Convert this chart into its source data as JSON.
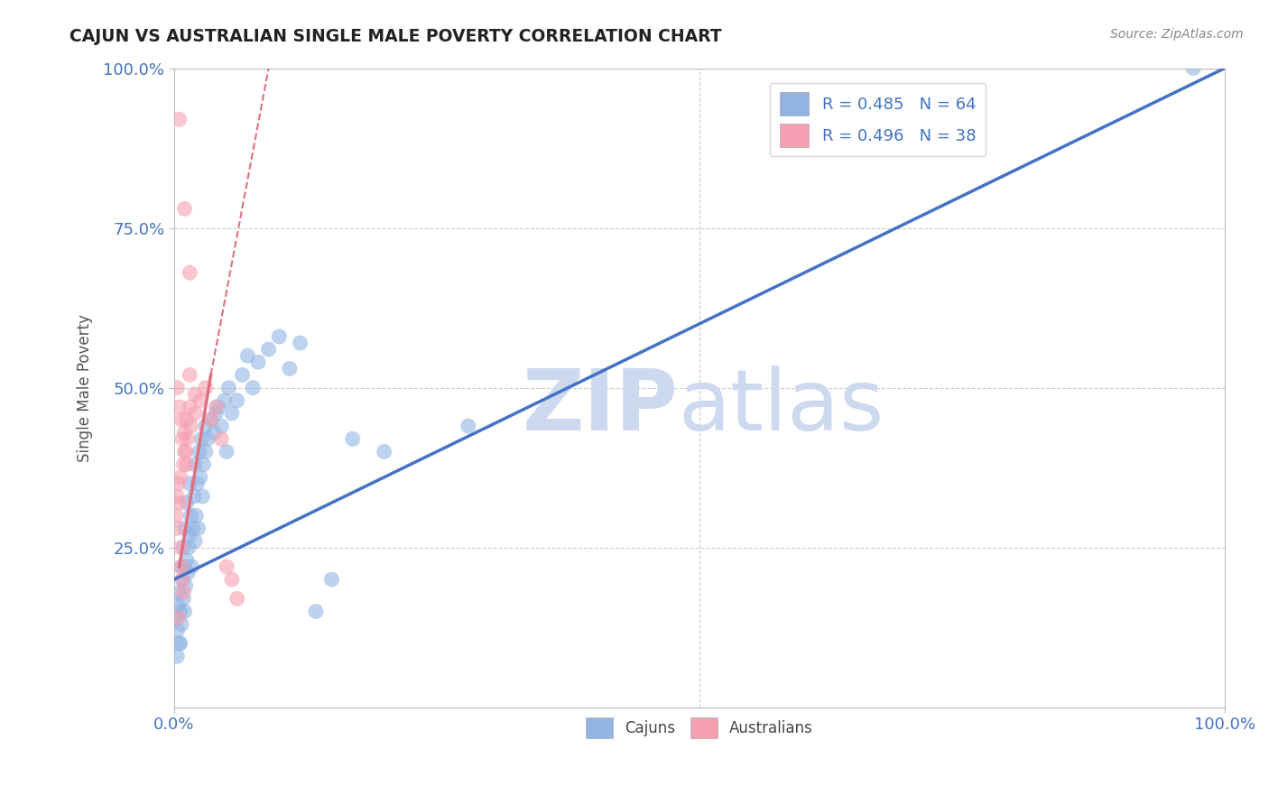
{
  "title": "CAJUN VS AUSTRALIAN SINGLE MALE POVERTY CORRELATION CHART",
  "source": "Source: ZipAtlas.com",
  "xlabel": "",
  "ylabel": "Single Male Poverty",
  "xlim": [
    0,
    100
  ],
  "ylim": [
    0,
    100
  ],
  "xtick_labels": [
    "0.0%",
    "100.0%"
  ],
  "ytick_labels": [
    "25.0%",
    "50.0%",
    "75.0%",
    "100.0%"
  ],
  "cajun_R": 0.485,
  "cajun_N": 64,
  "australian_R": 0.496,
  "australian_N": 38,
  "cajun_color": "#92b4e3",
  "australian_color": "#f5a0b0",
  "cajun_line_color": "#4472c4",
  "australian_line_color": "#e07080",
  "watermark_zip_color": "#ccd9ee",
  "watermark_atlas_color": "#ccd9ee",
  "title_color": "#222222",
  "axis_label_color": "#555555",
  "tick_color": "#4472c4",
  "grid_color": "#cccccc",
  "legend_text_color": "#4472c4",
  "cajun_line": {
    "x0": 0,
    "y0": 20,
    "x1": 100,
    "y1": 100
  },
  "australian_line_solid": {
    "x0": 0.5,
    "y0": 22,
    "x1": 3.5,
    "y1": 52
  },
  "australian_line_dashed": {
    "x0": 3.5,
    "y0": 52,
    "x1": 9.0,
    "y1": 100
  },
  "cajun_points": [
    [
      0.2,
      14
    ],
    [
      0.3,
      12
    ],
    [
      0.4,
      16
    ],
    [
      0.5,
      10
    ],
    [
      0.5,
      18
    ],
    [
      0.6,
      15
    ],
    [
      0.7,
      13
    ],
    [
      0.7,
      22
    ],
    [
      0.8,
      20
    ],
    [
      0.9,
      17
    ],
    [
      0.9,
      25
    ],
    [
      1.0,
      22
    ],
    [
      1.0,
      28
    ],
    [
      1.1,
      19
    ],
    [
      1.2,
      23
    ],
    [
      1.2,
      32
    ],
    [
      1.3,
      21
    ],
    [
      1.4,
      25
    ],
    [
      1.5,
      27
    ],
    [
      1.5,
      35
    ],
    [
      1.6,
      30
    ],
    [
      1.7,
      22
    ],
    [
      1.8,
      28
    ],
    [
      1.9,
      33
    ],
    [
      2.0,
      26
    ],
    [
      2.0,
      38
    ],
    [
      2.1,
      30
    ],
    [
      2.2,
      35
    ],
    [
      2.3,
      28
    ],
    [
      2.4,
      40
    ],
    [
      2.5,
      36
    ],
    [
      2.6,
      42
    ],
    [
      2.7,
      33
    ],
    [
      2.8,
      38
    ],
    [
      3.0,
      40
    ],
    [
      3.0,
      44
    ],
    [
      3.2,
      42
    ],
    [
      3.5,
      45
    ],
    [
      3.8,
      43
    ],
    [
      4.0,
      46
    ],
    [
      4.2,
      47
    ],
    [
      4.5,
      44
    ],
    [
      4.8,
      48
    ],
    [
      5.0,
      40
    ],
    [
      5.2,
      50
    ],
    [
      5.5,
      46
    ],
    [
      6.0,
      48
    ],
    [
      6.5,
      52
    ],
    [
      7.0,
      55
    ],
    [
      7.5,
      50
    ],
    [
      8.0,
      54
    ],
    [
      9.0,
      56
    ],
    [
      10.0,
      58
    ],
    [
      11.0,
      53
    ],
    [
      12.0,
      57
    ],
    [
      13.5,
      15
    ],
    [
      15.0,
      20
    ],
    [
      17.0,
      42
    ],
    [
      20.0,
      40
    ],
    [
      28.0,
      44
    ],
    [
      0.3,
      8
    ],
    [
      0.6,
      10
    ],
    [
      1.0,
      15
    ],
    [
      97.0,
      100
    ]
  ],
  "australian_points": [
    [
      0.5,
      92
    ],
    [
      1.0,
      78
    ],
    [
      1.5,
      68
    ],
    [
      0.3,
      50
    ],
    [
      0.5,
      47
    ],
    [
      0.7,
      45
    ],
    [
      0.8,
      42
    ],
    [
      1.0,
      40
    ],
    [
      1.2,
      38
    ],
    [
      1.5,
      52
    ],
    [
      0.2,
      30
    ],
    [
      0.3,
      28
    ],
    [
      0.4,
      35
    ],
    [
      0.5,
      32
    ],
    [
      0.6,
      25
    ],
    [
      0.7,
      22
    ],
    [
      0.8,
      20
    ],
    [
      0.9,
      18
    ],
    [
      1.0,
      43
    ],
    [
      1.2,
      45
    ],
    [
      1.5,
      47
    ],
    [
      2.0,
      49
    ],
    [
      0.3,
      33
    ],
    [
      0.6,
      36
    ],
    [
      0.9,
      38
    ],
    [
      1.1,
      40
    ],
    [
      1.3,
      42
    ],
    [
      1.6,
      44
    ],
    [
      2.0,
      46
    ],
    [
      2.5,
      48
    ],
    [
      3.0,
      50
    ],
    [
      3.5,
      45
    ],
    [
      4.0,
      47
    ],
    [
      4.5,
      42
    ],
    [
      5.0,
      22
    ],
    [
      5.5,
      20
    ],
    [
      6.0,
      17
    ],
    [
      0.4,
      14
    ]
  ]
}
